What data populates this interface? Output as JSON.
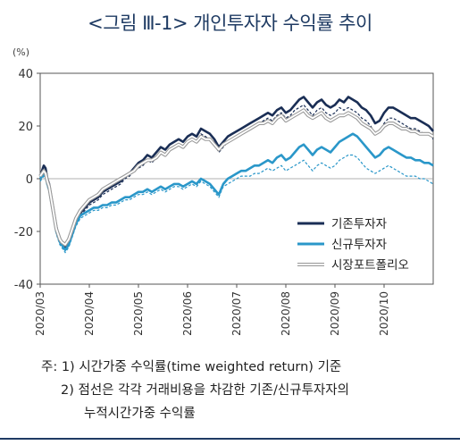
{
  "title": "<그림 Ⅲ-1> 개인투자자 수익률 추이",
  "unit": "(%)",
  "chart_data": {
    "type": "line",
    "ylim": [
      -40,
      40
    ],
    "yticks": [
      "40",
      "20",
      "0",
      "-20",
      "-40"
    ],
    "xticks": [
      "2020/03",
      "2020/04",
      "2020/05",
      "2020/06",
      "2020/07",
      "2020/08",
      "2020/09",
      "2020/10"
    ],
    "grid": false,
    "legend_position": "lower-right",
    "t": [
      0,
      2,
      4,
      6,
      8,
      10,
      12,
      14,
      16,
      18,
      20,
      22,
      24,
      28,
      32,
      36,
      40,
      45,
      50,
      55,
      60,
      65,
      70,
      75,
      80,
      85,
      90,
      95,
      100,
      105,
      110,
      115,
      120,
      125,
      130,
      135,
      140,
      145,
      150,
      155,
      160,
      165,
      170,
      175,
      180,
      185,
      190,
      195,
      200,
      205,
      210,
      215,
      220,
      225,
      230,
      235,
      240,
      245,
      250,
      255,
      260,
      265,
      270,
      275,
      280,
      285,
      290,
      295,
      300,
      305,
      310,
      315,
      320,
      325,
      330,
      335,
      340,
      345,
      350,
      355,
      360,
      365,
      370,
      375,
      380,
      385,
      390,
      395,
      400,
      405,
      410,
      415,
      420,
      425,
      430,
      435,
      440
    ],
    "series": [
      {
        "name": "기존투자자",
        "color": "#1a2e55",
        "style": "solid-thick",
        "values": [
          1,
          3,
          5,
          4,
          0,
          -2,
          -6,
          -10,
          -14,
          -18,
          -21,
          -23,
          -24,
          -26,
          -24,
          -20,
          -16,
          -13,
          -11,
          -9,
          -8,
          -7,
          -5,
          -4,
          -3,
          -2,
          -1,
          1,
          2,
          4,
          6,
          7,
          9,
          8,
          10,
          12,
          11,
          13,
          14,
          15,
          14,
          16,
          17,
          16,
          19,
          18,
          17,
          15,
          12,
          14,
          16,
          17,
          18,
          19,
          20,
          21,
          22,
          23,
          24,
          25,
          24,
          26,
          27,
          25,
          26,
          28,
          30,
          31,
          29,
          27,
          29,
          30,
          28,
          27,
          28,
          30,
          29,
          31,
          30,
          29,
          27,
          26,
          24,
          21,
          22,
          25,
          27,
          27,
          26,
          25,
          24,
          23,
          23,
          22,
          21,
          20,
          18
        ]
      },
      {
        "name": "기존투자자 (누적시간가중)",
        "color": "#1a2e55",
        "style": "dashed",
        "values": [
          0,
          2,
          3,
          2,
          -1,
          -3,
          -7,
          -11,
          -15,
          -19,
          -22,
          -24,
          -25,
          -27,
          -25,
          -21,
          -17,
          -14,
          -12,
          -10,
          -9,
          -8,
          -6,
          -5,
          -4,
          -3,
          -2,
          0,
          1,
          3,
          4,
          5,
          7,
          6,
          8,
          10,
          9,
          11,
          12,
          13,
          12,
          14,
          15,
          14,
          17,
          16,
          15,
          13,
          10,
          12,
          14,
          15,
          16,
          17,
          18,
          19,
          20,
          21,
          22,
          23,
          22,
          24,
          25,
          23,
          24,
          26,
          27,
          28,
          26,
          24,
          26,
          27,
          25,
          24,
          25,
          27,
          26,
          27,
          26,
          25,
          23,
          22,
          20,
          17,
          18,
          21,
          23,
          23,
          22,
          21,
          20,
          19,
          19,
          18,
          17,
          17,
          15
        ]
      },
      {
        "name": "신규투자자",
        "color": "#2a97c9",
        "style": "solid-thick",
        "values": [
          0,
          1,
          2,
          1,
          -2,
          -4,
          -8,
          -12,
          -16,
          -20,
          -22,
          -24,
          -25,
          -27,
          -25,
          -21,
          -17,
          -14,
          -13,
          -12,
          -11,
          -11,
          -10,
          -10,
          -9,
          -9,
          -8,
          -7,
          -7,
          -6,
          -5,
          -5,
          -4,
          -5,
          -4,
          -3,
          -4,
          -3,
          -2,
          -2,
          -3,
          -2,
          -1,
          -2,
          0,
          -1,
          -2,
          -4,
          -6,
          -2,
          0,
          1,
          2,
          3,
          3,
          4,
          5,
          5,
          6,
          7,
          6,
          8,
          9,
          7,
          8,
          10,
          12,
          13,
          11,
          9,
          11,
          12,
          11,
          10,
          12,
          14,
          15,
          16,
          17,
          16,
          14,
          12,
          10,
          8,
          9,
          11,
          12,
          11,
          10,
          9,
          8,
          8,
          7,
          7,
          6,
          6,
          5
        ]
      },
      {
        "name": "신규투자자 (누적시간가중)",
        "color": "#2a97c9",
        "style": "dashed",
        "values": [
          -1,
          0,
          1,
          0,
          -3,
          -5,
          -9,
          -13,
          -17,
          -21,
          -23,
          -25,
          -26,
          -28,
          -26,
          -22,
          -18,
          -15,
          -14,
          -13,
          -12,
          -12,
          -11,
          -11,
          -10,
          -10,
          -9,
          -8,
          -8,
          -7,
          -6,
          -6,
          -5,
          -6,
          -5,
          -4,
          -5,
          -4,
          -3,
          -3,
          -4,
          -3,
          -2,
          -3,
          -1,
          -2,
          -3,
          -5,
          -7,
          -3,
          -2,
          -1,
          0,
          1,
          1,
          1,
          2,
          2,
          3,
          4,
          3,
          4,
          5,
          3,
          4,
          5,
          6,
          7,
          5,
          3,
          5,
          6,
          5,
          4,
          5,
          7,
          8,
          9,
          9,
          8,
          6,
          4,
          3,
          2,
          3,
          4,
          5,
          4,
          3,
          2,
          1,
          1,
          1,
          0,
          0,
          -1,
          -2
        ]
      },
      {
        "name": "시장포트폴리오",
        "color": "#9a9a9a",
        "style": "double",
        "values": [
          1,
          2,
          3,
          2,
          -1,
          -3,
          -7,
          -11,
          -15,
          -19,
          -21,
          -23,
          -24,
          -25,
          -23,
          -19,
          -15,
          -12,
          -10,
          -8,
          -7,
          -6,
          -4,
          -3,
          -2,
          -1,
          0,
          1,
          2,
          3,
          5,
          6,
          7,
          7,
          8,
          10,
          9,
          11,
          12,
          13,
          12,
          14,
          15,
          14,
          16,
          15,
          15,
          13,
          11,
          13,
          14,
          15,
          16,
          17,
          18,
          19,
          20,
          21,
          21,
          22,
          21,
          23,
          24,
          22,
          23,
          24,
          25,
          26,
          24,
          23,
          24,
          25,
          23,
          22,
          23,
          24,
          24,
          25,
          24,
          23,
          21,
          20,
          19,
          17,
          18,
          20,
          21,
          21,
          20,
          19,
          19,
          18,
          18,
          17,
          17,
          17,
          16
        ]
      }
    ],
    "legend": [
      "기존투자자",
      "신규투자자",
      "시장포트폴리오"
    ]
  },
  "notes": {
    "line1": "주: 1) 시간가중 수익률(time weighted return) 기준",
    "line2": "2) 점선은 각각 거래비용을 차감한 기존/신규투자자의",
    "line3": "누적시간가중 수익률"
  }
}
